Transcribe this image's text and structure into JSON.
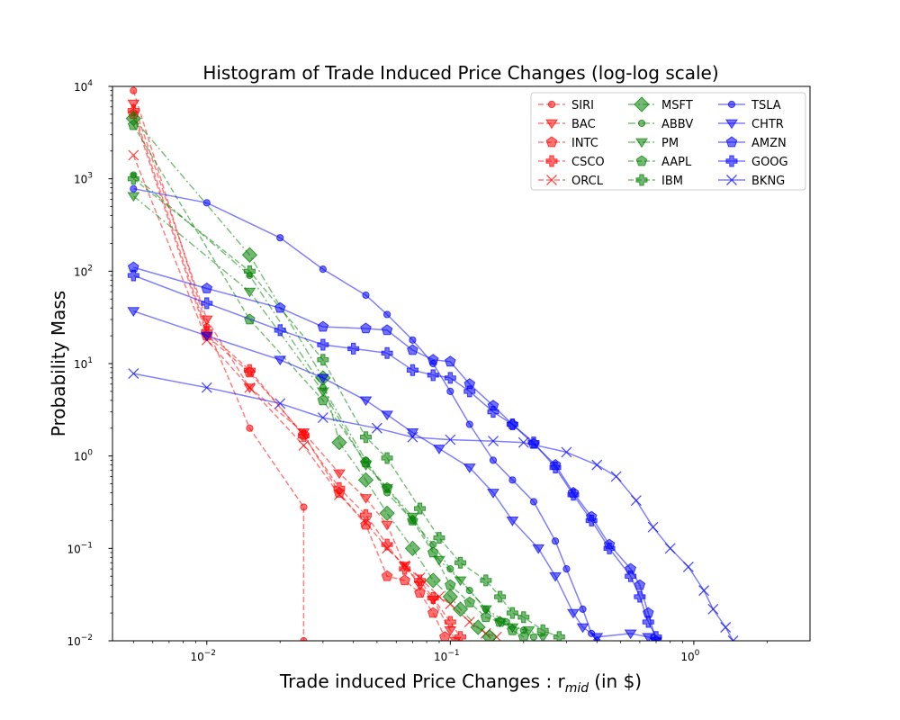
{
  "chart_data": {
    "type": "line",
    "title": "Histogram of Trade Induced Price Changes (log-log scale)",
    "xlabel": "Trade induced Price Changes : r",
    "xlabel_subscript": "mid",
    "xlabel_suffix": "(in $)",
    "ylabel": "Probability Mass",
    "xscale": "log",
    "yscale": "log",
    "xlim": [
      0.0041,
      3.0
    ],
    "ylim": [
      0.01,
      10000
    ],
    "xticks": [
      {
        "value": 0.01,
        "mant": "10",
        "exp": "−2"
      },
      {
        "value": 0.1,
        "mant": "10",
        "exp": "−1"
      },
      {
        "value": 1,
        "mant": "10",
        "exp": "0"
      }
    ],
    "yticks": [
      {
        "value": 0.01,
        "mant": "10",
        "exp": "−2"
      },
      {
        "value": 0.1,
        "mant": "10",
        "exp": "−1"
      },
      {
        "value": 1,
        "mant": "10",
        "exp": "0"
      },
      {
        "value": 10,
        "mant": "10",
        "exp": "1"
      },
      {
        "value": 100,
        "mant": "10",
        "exp": "2"
      },
      {
        "value": 1000,
        "mant": "10",
        "exp": "3"
      },
      {
        "value": 10000,
        "mant": "10",
        "exp": "4"
      }
    ],
    "grid": false,
    "legend_position": "top-right",
    "legend_columns": 3,
    "series": [
      {
        "name": "SIRI",
        "color": "#ff0000",
        "linestyle": "dashed",
        "marker": "circle",
        "points": [
          [
            0.005,
            9000
          ],
          [
            0.01,
            25
          ],
          [
            0.015,
            2.0
          ],
          [
            0.025,
            0.28
          ],
          [
            0.025,
            0.01
          ]
        ]
      },
      {
        "name": "BAC",
        "color": "#ff0000",
        "linestyle": "dashed",
        "marker": "triangle-down",
        "points": [
          [
            0.005,
            6500
          ],
          [
            0.01,
            30
          ],
          [
            0.015,
            5.5
          ],
          [
            0.025,
            1.8
          ],
          [
            0.035,
            0.65
          ],
          [
            0.045,
            0.35
          ],
          [
            0.055,
            0.18
          ],
          [
            0.065,
            0.065
          ],
          [
            0.075,
            0.04
          ],
          [
            0.085,
            0.028
          ],
          [
            0.1,
            0.013
          ],
          [
            0.105,
            0.01
          ]
        ]
      },
      {
        "name": "INTC",
        "color": "#ff0000",
        "linestyle": "dashed",
        "marker": "pentagon",
        "points": [
          [
            0.005,
            5000
          ],
          [
            0.01,
            20
          ],
          [
            0.015,
            8.0
          ],
          [
            0.025,
            1.7
          ],
          [
            0.035,
            0.4
          ],
          [
            0.045,
            0.18
          ],
          [
            0.055,
            0.05
          ],
          [
            0.065,
            0.045
          ],
          [
            0.075,
            0.033
          ],
          [
            0.085,
            0.02
          ],
          [
            0.095,
            0.011
          ]
        ]
      },
      {
        "name": "CSCO",
        "color": "#ff0000",
        "linestyle": "dashed",
        "marker": "plus",
        "points": [
          [
            0.005,
            5500
          ],
          [
            0.01,
            22
          ],
          [
            0.015,
            8.5
          ],
          [
            0.025,
            1.65
          ],
          [
            0.035,
            0.45
          ],
          [
            0.045,
            0.23
          ],
          [
            0.055,
            0.11
          ],
          [
            0.065,
            0.06
          ],
          [
            0.075,
            0.045
          ],
          [
            0.085,
            0.029
          ],
          [
            0.1,
            0.016
          ],
          [
            0.11,
            0.011
          ]
        ]
      },
      {
        "name": "ORCL",
        "color": "#ff0000",
        "linestyle": "dashed",
        "marker": "x",
        "points": [
          [
            0.005,
            1800
          ],
          [
            0.01,
            18
          ],
          [
            0.015,
            5.5
          ],
          [
            0.025,
            1.3
          ],
          [
            0.035,
            0.38
          ],
          [
            0.045,
            0.19
          ],
          [
            0.055,
            0.1
          ],
          [
            0.065,
            0.065
          ],
          [
            0.075,
            0.048
          ],
          [
            0.09,
            0.03
          ],
          [
            0.1,
            0.025
          ],
          [
            0.12,
            0.016
          ],
          [
            0.14,
            0.012
          ],
          [
            0.155,
            0.011
          ]
        ]
      },
      {
        "name": "MSFT",
        "color": "#008000",
        "linestyle": "dashdot",
        "marker": "diamond",
        "points": [
          [
            0.005,
            4500
          ],
          [
            0.015,
            150
          ],
          [
            0.03,
            7.0
          ],
          [
            0.035,
            1.4
          ],
          [
            0.045,
            0.55
          ],
          [
            0.055,
            0.24
          ],
          [
            0.07,
            0.1
          ],
          [
            0.085,
            0.045
          ],
          [
            0.1,
            0.03
          ],
          [
            0.11,
            0.022
          ],
          [
            0.13,
            0.014
          ],
          [
            0.145,
            0.011
          ]
        ]
      },
      {
        "name": "ABBV",
        "color": "#008000",
        "linestyle": "dashdot",
        "marker": "circle",
        "points": [
          [
            0.005,
            1100
          ],
          [
            0.015,
            90
          ],
          [
            0.03,
            5.5
          ],
          [
            0.045,
            0.9
          ],
          [
            0.055,
            0.4
          ],
          [
            0.07,
            0.2
          ],
          [
            0.085,
            0.11
          ],
          [
            0.1,
            0.06
          ],
          [
            0.12,
            0.035
          ],
          [
            0.14,
            0.022
          ],
          [
            0.17,
            0.016
          ],
          [
            0.2,
            0.013
          ],
          [
            0.22,
            0.011
          ]
        ]
      },
      {
        "name": "PM",
        "color": "#008000",
        "linestyle": "dashdot",
        "marker": "triangle-down",
        "points": [
          [
            0.005,
            650
          ],
          [
            0.015,
            60
          ],
          [
            0.03,
            5.0
          ],
          [
            0.045,
            0.8
          ],
          [
            0.055,
            0.45
          ],
          [
            0.07,
            0.22
          ],
          [
            0.09,
            0.075
          ],
          [
            0.11,
            0.045
          ],
          [
            0.14,
            0.022
          ],
          [
            0.16,
            0.016
          ],
          [
            0.18,
            0.014
          ],
          [
            0.21,
            0.013
          ],
          [
            0.24,
            0.011
          ]
        ]
      },
      {
        "name": "AAPL",
        "color": "#008000",
        "linestyle": "dashed",
        "marker": "pentagon",
        "points": [
          [
            0.005,
            3800
          ],
          [
            0.015,
            30
          ],
          [
            0.03,
            4.0
          ],
          [
            0.045,
            0.85
          ],
          [
            0.055,
            0.45
          ],
          [
            0.07,
            0.2
          ],
          [
            0.085,
            0.09
          ],
          [
            0.1,
            0.04
          ],
          [
            0.12,
            0.026
          ],
          [
            0.14,
            0.018
          ],
          [
            0.16,
            0.016
          ],
          [
            0.18,
            0.013
          ],
          [
            0.2,
            0.011
          ]
        ]
      },
      {
        "name": "IBM",
        "color": "#008000",
        "linestyle": "dashed",
        "marker": "plus",
        "points": [
          [
            0.005,
            1000
          ],
          [
            0.015,
            100
          ],
          [
            0.03,
            11
          ],
          [
            0.045,
            1.6
          ],
          [
            0.055,
            0.95
          ],
          [
            0.075,
            0.27
          ],
          [
            0.09,
            0.13
          ],
          [
            0.11,
            0.07
          ],
          [
            0.14,
            0.045
          ],
          [
            0.16,
            0.03
          ],
          [
            0.18,
            0.02
          ],
          [
            0.2,
            0.018
          ],
          [
            0.24,
            0.013
          ],
          [
            0.28,
            0.011
          ]
        ]
      },
      {
        "name": "TSLA",
        "color": "#0000ff",
        "linestyle": "solid",
        "marker": "circle",
        "points": [
          [
            0.005,
            780
          ],
          [
            0.01,
            550
          ],
          [
            0.02,
            230
          ],
          [
            0.03,
            105
          ],
          [
            0.045,
            55
          ],
          [
            0.055,
            34
          ],
          [
            0.07,
            18
          ],
          [
            0.085,
            10
          ],
          [
            0.1,
            5.0
          ],
          [
            0.12,
            2.2
          ],
          [
            0.15,
            0.9
          ],
          [
            0.18,
            0.55
          ],
          [
            0.22,
            0.32
          ],
          [
            0.27,
            0.12
          ],
          [
            0.3,
            0.06
          ],
          [
            0.35,
            0.022
          ],
          [
            0.38,
            0.012
          ],
          [
            0.4,
            0.01
          ]
        ]
      },
      {
        "name": "CHTR",
        "color": "#0000ff",
        "linestyle": "solid",
        "marker": "triangle-down",
        "points": [
          [
            0.005,
            37
          ],
          [
            0.01,
            20
          ],
          [
            0.02,
            11
          ],
          [
            0.03,
            7.0
          ],
          [
            0.045,
            4.0
          ],
          [
            0.055,
            2.8
          ],
          [
            0.07,
            1.8
          ],
          [
            0.09,
            1.2
          ],
          [
            0.12,
            0.75
          ],
          [
            0.15,
            0.4
          ],
          [
            0.18,
            0.2
          ],
          [
            0.23,
            0.1
          ],
          [
            0.27,
            0.05
          ],
          [
            0.32,
            0.02
          ],
          [
            0.35,
            0.014
          ],
          [
            0.4,
            0.011
          ],
          [
            0.55,
            0.012
          ],
          [
            0.65,
            0.011
          ],
          [
            0.7,
            0.01
          ]
        ]
      },
      {
        "name": "AMZN",
        "color": "#0000ff",
        "linestyle": "solid",
        "marker": "pentagon",
        "points": [
          [
            0.005,
            110
          ],
          [
            0.01,
            65
          ],
          [
            0.02,
            40
          ],
          [
            0.03,
            25
          ],
          [
            0.045,
            24
          ],
          [
            0.055,
            23
          ],
          [
            0.07,
            14
          ],
          [
            0.085,
            11
          ],
          [
            0.1,
            10.5
          ],
          [
            0.12,
            6.0
          ],
          [
            0.15,
            3.5
          ],
          [
            0.18,
            2.2
          ],
          [
            0.22,
            1.35
          ],
          [
            0.27,
            0.8
          ],
          [
            0.32,
            0.4
          ],
          [
            0.38,
            0.22
          ],
          [
            0.45,
            0.11
          ],
          [
            0.55,
            0.06
          ],
          [
            0.6,
            0.04
          ],
          [
            0.65,
            0.02
          ],
          [
            0.7,
            0.01
          ]
        ]
      },
      {
        "name": "GOOG",
        "color": "#0000ff",
        "linestyle": "solid",
        "marker": "plus",
        "points": [
          [
            0.005,
            90
          ],
          [
            0.01,
            45
          ],
          [
            0.02,
            23
          ],
          [
            0.03,
            16
          ],
          [
            0.04,
            14.5
          ],
          [
            0.055,
            13
          ],
          [
            0.07,
            8.5
          ],
          [
            0.085,
            7.5
          ],
          [
            0.1,
            7.0
          ],
          [
            0.12,
            5.0
          ],
          [
            0.15,
            3.0
          ],
          [
            0.18,
            2.2
          ],
          [
            0.22,
            1.4
          ],
          [
            0.27,
            0.75
          ],
          [
            0.32,
            0.38
          ],
          [
            0.38,
            0.2
          ],
          [
            0.45,
            0.1
          ],
          [
            0.55,
            0.05
          ],
          [
            0.6,
            0.03
          ],
          [
            0.65,
            0.016
          ],
          [
            0.7,
            0.011
          ]
        ]
      },
      {
        "name": "BKNG",
        "color": "#0000ff",
        "linestyle": "solid",
        "marker": "x",
        "points": [
          [
            0.005,
            7.8
          ],
          [
            0.01,
            5.5
          ],
          [
            0.02,
            3.7
          ],
          [
            0.03,
            2.6
          ],
          [
            0.05,
            2.0
          ],
          [
            0.07,
            1.6
          ],
          [
            0.1,
            1.5
          ],
          [
            0.15,
            1.45
          ],
          [
            0.2,
            1.4
          ],
          [
            0.3,
            1.1
          ],
          [
            0.4,
            0.8
          ],
          [
            0.48,
            0.6
          ],
          [
            0.58,
            0.33
          ],
          [
            0.68,
            0.17
          ],
          [
            0.8,
            0.1
          ],
          [
            0.95,
            0.063
          ],
          [
            1.1,
            0.035
          ],
          [
            1.2,
            0.022
          ],
          [
            1.35,
            0.014
          ],
          [
            1.45,
            0.01
          ]
        ]
      }
    ]
  }
}
